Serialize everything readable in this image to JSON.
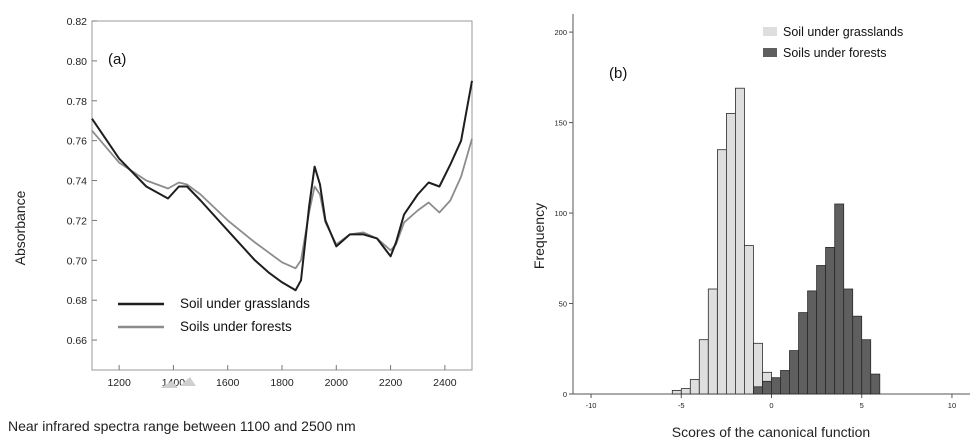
{
  "chart_data": [
    {
      "type": "line",
      "panel_label": "(a)",
      "xlabel": "Near infrared spectra range between 1100 and 2500  nm",
      "ylabel": "Absorbance",
      "xlim": [
        1100,
        2500
      ],
      "ylim": [
        0.645,
        0.82
      ],
      "xticks": [
        "1200",
        "1400",
        "1600",
        "1800",
        "2000",
        "2200",
        "2400"
      ],
      "yticks": [
        "0.66",
        "0.68",
        "0.70",
        "0.72",
        "0.74",
        "0.76",
        "0.78",
        "0.80",
        "0.82"
      ],
      "grid": false,
      "legend": "bottom-left",
      "x": [
        1100,
        1200,
        1300,
        1380,
        1420,
        1450,
        1500,
        1600,
        1700,
        1750,
        1800,
        1850,
        1870,
        1900,
        1920,
        1940,
        1960,
        2000,
        2050,
        2100,
        2150,
        2200,
        2220,
        2250,
        2300,
        2340,
        2380,
        2420,
        2460,
        2500
      ],
      "series": [
        {
          "name": "Soil under grasslands",
          "color": "#1e1e1e",
          "values": [
            0.771,
            0.751,
            0.737,
            0.731,
            0.737,
            0.737,
            0.73,
            0.715,
            0.7,
            0.694,
            0.689,
            0.685,
            0.69,
            0.727,
            0.747,
            0.738,
            0.72,
            0.707,
            0.713,
            0.713,
            0.711,
            0.702,
            0.709,
            0.723,
            0.733,
            0.739,
            0.737,
            0.748,
            0.76,
            0.79
          ]
        },
        {
          "name": "Soils under forests",
          "color": "#8c8c8c",
          "values": [
            0.765,
            0.749,
            0.74,
            0.736,
            0.739,
            0.738,
            0.733,
            0.72,
            0.709,
            0.704,
            0.699,
            0.696,
            0.7,
            0.724,
            0.737,
            0.733,
            0.719,
            0.708,
            0.713,
            0.714,
            0.711,
            0.705,
            0.708,
            0.719,
            0.725,
            0.729,
            0.724,
            0.73,
            0.742,
            0.761
          ]
        }
      ]
    },
    {
      "type": "bar",
      "chart_kind": "histogram",
      "panel_label": "(b)",
      "xlabel": "Scores of the canonical function",
      "ylabel": "Frequency",
      "xlim": [
        -11,
        11
      ],
      "ylim": [
        0,
        210
      ],
      "xticks": [
        "-10",
        "-5",
        "0",
        "5",
        "10"
      ],
      "yticks": [
        "0",
        "50",
        "100",
        "150",
        "200"
      ],
      "grid": false,
      "legend": "top-right",
      "bin_width": 0.5,
      "series": [
        {
          "name": "Soil under grasslands",
          "color": "#dedede",
          "bin_starts": [
            -5.5,
            -5.0,
            -4.5,
            -4.0,
            -3.5,
            -3.0,
            -2.5,
            -2.0,
            -1.5,
            -1.0,
            -0.5
          ],
          "values": [
            2,
            3,
            8,
            30,
            58,
            135,
            155,
            169,
            82,
            28,
            12
          ]
        },
        {
          "name": "Soils under forests",
          "color": "#5f5f5f",
          "bin_starts": [
            -1.0,
            -0.5,
            0.0,
            0.5,
            1.0,
            1.5,
            2.0,
            2.5,
            3.0,
            3.5,
            4.0,
            4.5,
            5.0,
            5.5
          ],
          "values": [
            4,
            7,
            9,
            13,
            24,
            45,
            57,
            71,
            81,
            105,
            58,
            43,
            30,
            11
          ]
        }
      ]
    }
  ]
}
